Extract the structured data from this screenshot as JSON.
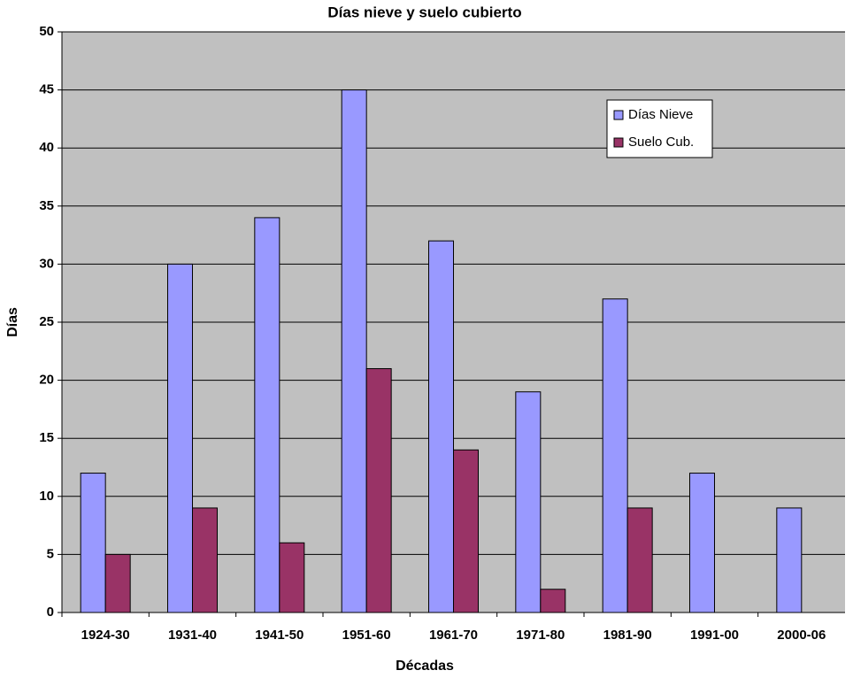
{
  "chart_data": {
    "type": "bar",
    "title": "Días nieve y suelo cubierto",
    "x_label": "Décadas",
    "y_label": "Días",
    "categories": [
      "1924-30",
      "1931-40",
      "1941-50",
      "1951-60",
      "1961-70",
      "1971-80",
      "1981-90",
      "1991-00",
      "2000-06"
    ],
    "series": [
      {
        "name": "Días Nieve",
        "color": "#9999ff",
        "values": [
          12,
          30,
          34,
          45,
          32,
          19,
          27,
          12,
          9
        ]
      },
      {
        "name": "Suelo Cub.",
        "color": "#993366",
        "values": [
          5,
          9,
          6,
          21,
          14,
          2,
          9,
          0,
          0
        ]
      }
    ],
    "ylim": [
      0,
      50
    ],
    "yticks": [
      0,
      5,
      10,
      15,
      20,
      25,
      30,
      35,
      40,
      45,
      50
    ],
    "grid": true,
    "legend_position": "upper right",
    "plot_background": "#c0c0c0"
  }
}
